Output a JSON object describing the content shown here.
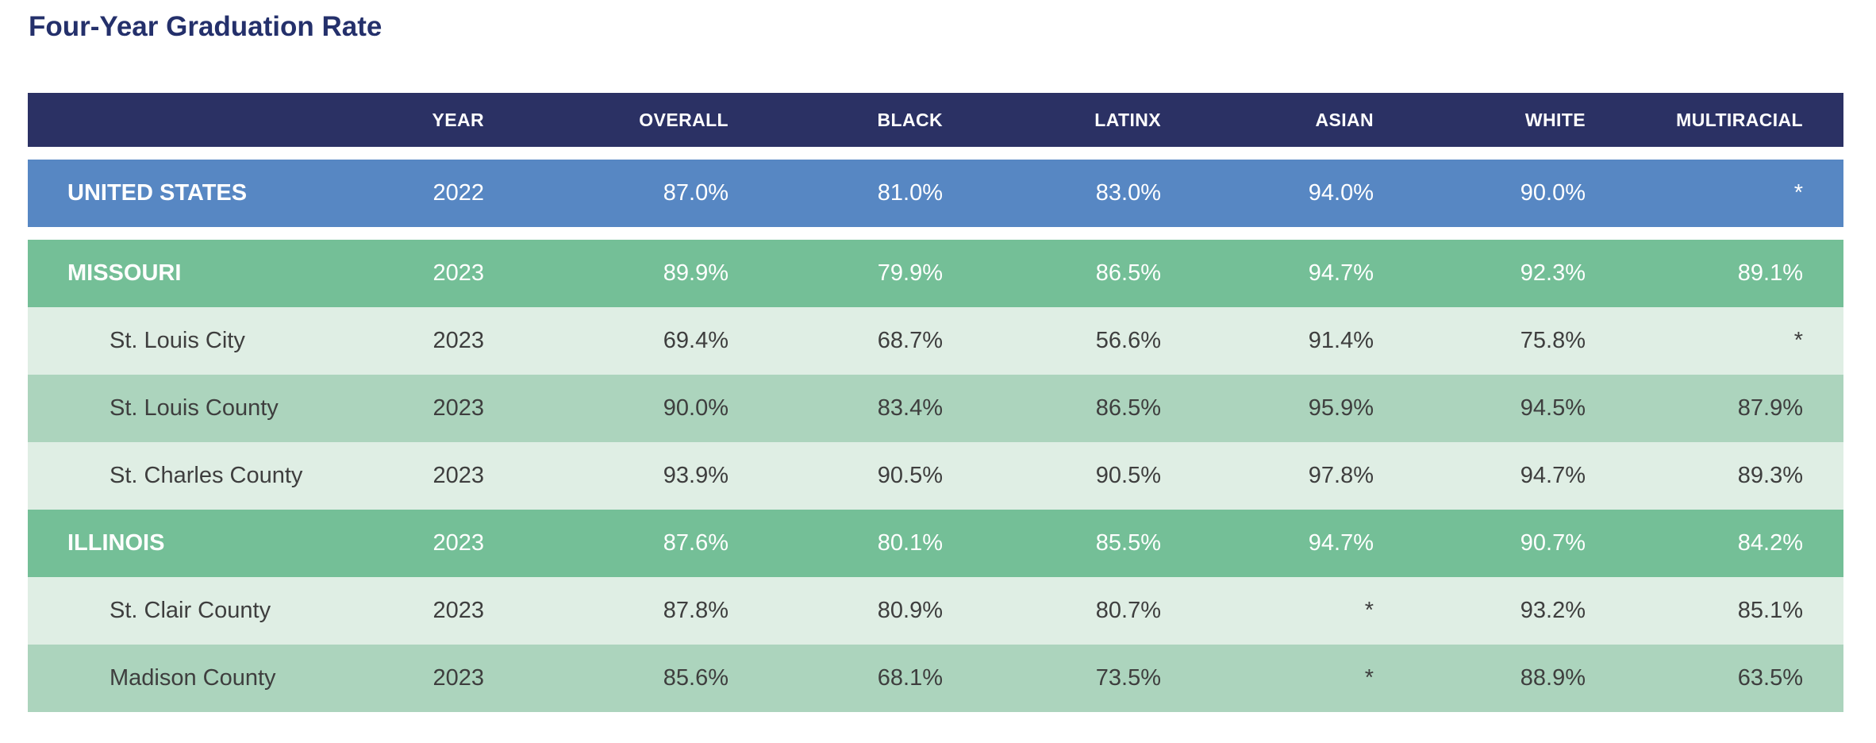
{
  "title": "Four-Year Graduation Rate",
  "colors": {
    "title_text": "#24306B",
    "header_bg": "#2B3164",
    "header_text": "#FFFFFF",
    "us_row_bg": "#5787C3",
    "state_row_bg": "#74BF97",
    "county_row_light_bg": "#DFEEE4",
    "county_row_medium_bg": "#ACD4BD",
    "county_text": "#3E3E3E"
  },
  "chart_data": {
    "type": "table",
    "title": "Four-Year Graduation Rate",
    "columns": [
      "",
      "YEAR",
      "OVERALL",
      "BLACK",
      "LATINX",
      "ASIAN",
      "WHITE",
      "MULTIRACIAL"
    ],
    "rows": [
      {
        "name": "UNITED STATES",
        "level": "country",
        "row_style": "blue",
        "values": [
          "2022",
          "87.0%",
          "81.0%",
          "83.0%",
          "94.0%",
          "90.0%",
          "*"
        ]
      },
      {
        "name": "MISSOURI",
        "level": "state",
        "row_style": "green",
        "values": [
          "2023",
          "89.9%",
          "79.9%",
          "86.5%",
          "94.7%",
          "92.3%",
          "89.1%"
        ]
      },
      {
        "name": "St. Louis City",
        "level": "county",
        "row_style": "light",
        "values": [
          "2023",
          "69.4%",
          "68.7%",
          "56.6%",
          "91.4%",
          "75.8%",
          "*"
        ]
      },
      {
        "name": "St. Louis County",
        "level": "county",
        "row_style": "medium",
        "values": [
          "2023",
          "90.0%",
          "83.4%",
          "86.5%",
          "95.9%",
          "94.5%",
          "87.9%"
        ]
      },
      {
        "name": "St. Charles County",
        "level": "county",
        "row_style": "light",
        "values": [
          "2023",
          "93.9%",
          "90.5%",
          "90.5%",
          "97.8%",
          "94.7%",
          "89.3%"
        ]
      },
      {
        "name": "ILLINOIS",
        "level": "state",
        "row_style": "green",
        "values": [
          "2023",
          "87.6%",
          "80.1%",
          "85.5%",
          "94.7%",
          "90.7%",
          "84.2%"
        ]
      },
      {
        "name": "St. Clair County",
        "level": "county",
        "row_style": "light",
        "values": [
          "2023",
          "87.8%",
          "80.9%",
          "80.7%",
          "*",
          "93.2%",
          "85.1%"
        ]
      },
      {
        "name": "Madison County",
        "level": "county",
        "row_style": "medium",
        "values": [
          "2023",
          "85.6%",
          "68.1%",
          "73.5%",
          "*",
          "88.9%",
          "63.5%"
        ]
      }
    ]
  }
}
